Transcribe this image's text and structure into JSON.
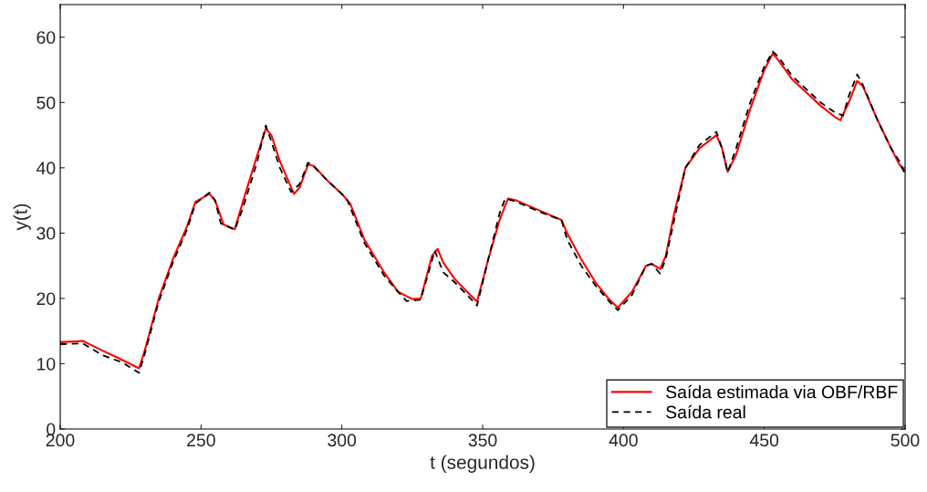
{
  "chart_data": {
    "type": "line",
    "xlabel": "t (segundos)",
    "ylabel": "y(t)",
    "xlim": [
      200,
      500
    ],
    "xticks": [
      200,
      250,
      300,
      350,
      400,
      450,
      500
    ],
    "ylim": [
      0,
      65
    ],
    "yticks": [
      0,
      10,
      20,
      30,
      40,
      50,
      60
    ],
    "grid": false,
    "legend": "bottom right",
    "marker": "none",
    "series": [
      {
        "name": "Saída estimada via OBF/RBF",
        "color": "#ff0000",
        "line_style": "solid",
        "x": [
          200,
          208,
          215,
          220,
          228,
          230,
          235,
          240,
          245,
          248,
          253,
          255,
          258,
          262,
          265,
          270,
          273,
          275,
          278,
          283,
          285,
          288,
          290,
          295,
          300,
          303,
          308,
          315,
          320,
          325,
          328,
          332,
          334,
          336,
          340,
          345,
          348,
          352,
          356,
          359,
          362,
          370,
          378,
          380,
          385,
          390,
          395,
          398,
          403,
          408,
          410,
          413,
          415,
          418,
          422,
          427,
          433,
          435,
          437,
          440,
          445,
          450,
          453,
          455,
          460,
          465,
          470,
          475,
          477,
          480,
          483,
          485,
          490,
          495,
          498,
          500
        ],
        "values": [
          13.3,
          13.5,
          12,
          11,
          9.3,
          12,
          20,
          26,
          31,
          34.8,
          36,
          35,
          31.3,
          30.6,
          35,
          42,
          46,
          45,
          41,
          36,
          37,
          40.5,
          40.3,
          38,
          36,
          34.5,
          29,
          24,
          21,
          19.9,
          20,
          26.5,
          27.6,
          25.5,
          23,
          20.8,
          19.5,
          26,
          32,
          35.3,
          35,
          33.5,
          32,
          30,
          26,
          22.5,
          19.8,
          18.6,
          21,
          25,
          25.3,
          24.5,
          26.5,
          33,
          40,
          43,
          45,
          43,
          39.4,
          42,
          49,
          55,
          57.5,
          56.5,
          53.5,
          51.5,
          49.5,
          47.8,
          47.3,
          50,
          53.3,
          52.5,
          47.5,
          43,
          40.5,
          39.5
        ]
      },
      {
        "name": "Saída real",
        "color": "#000000",
        "line_style": "dashed",
        "x": [
          200,
          208,
          215,
          222,
          228,
          230,
          235,
          240,
          245,
          248,
          253,
          255,
          257,
          262,
          265,
          270,
          273,
          275,
          278,
          282,
          285,
          288,
          290,
          295,
          300,
          302,
          308,
          315,
          320,
          323,
          328,
          333,
          336,
          340,
          345,
          348,
          352,
          356,
          358,
          362,
          370,
          378,
          380,
          385,
          390,
          395,
          398,
          403,
          408,
          410,
          413,
          415,
          418,
          422,
          427,
          433,
          435,
          437,
          440,
          445,
          450,
          453,
          455,
          460,
          465,
          470,
          475,
          478,
          480,
          483,
          485,
          490,
          495,
          498,
          500
        ],
        "values": [
          13,
          13.1,
          11.3,
          10.2,
          8.6,
          11.5,
          19.5,
          25.5,
          30.5,
          34.5,
          36.2,
          35,
          31.5,
          30.5,
          34,
          41,
          46.5,
          44,
          40,
          36.3,
          37.5,
          40.8,
          40.2,
          38,
          36,
          35,
          28.5,
          23.5,
          21,
          19.6,
          19.8,
          27.3,
          24,
          22.5,
          20.3,
          18.9,
          26,
          33,
          35.3,
          34.8,
          33.3,
          32,
          29,
          25,
          22,
          19.5,
          18.2,
          20.5,
          25,
          25.3,
          23.8,
          26,
          32,
          40,
          43.5,
          45.5,
          43,
          39.3,
          43,
          50,
          55.5,
          57.8,
          57,
          54,
          52,
          50,
          48.5,
          48,
          51,
          54.3,
          52.7,
          47.5,
          43,
          41,
          39
        ]
      }
    ]
  }
}
